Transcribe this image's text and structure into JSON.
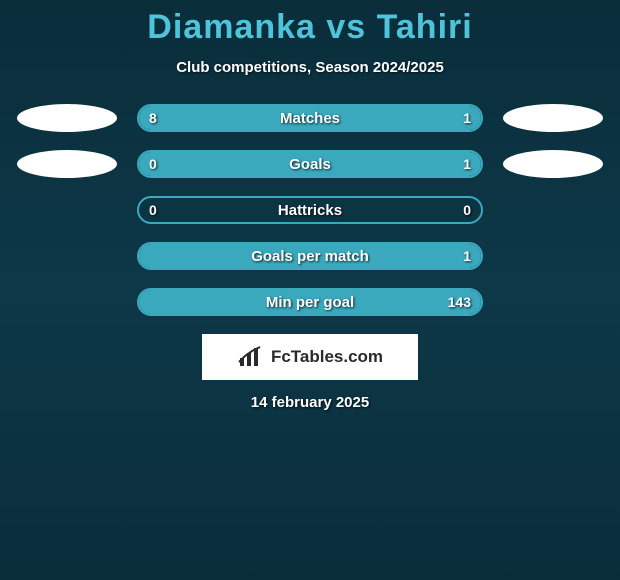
{
  "title": {
    "player1": "Diamanka",
    "vs": "vs",
    "player2": "Tahiri"
  },
  "subtitle": "Club competitions, Season 2024/2025",
  "accent": "#3aa8bd",
  "title_color": "#4fc3d9",
  "rows": [
    {
      "label": "Matches",
      "left": "8",
      "right": "1",
      "left_pct": 78,
      "right_pct": 22,
      "show_avatars": true
    },
    {
      "label": "Goals",
      "left": "0",
      "right": "1",
      "left_pct": 18,
      "right_pct": 82,
      "show_avatars": true
    },
    {
      "label": "Hattricks",
      "left": "0",
      "right": "0",
      "left_pct": 0,
      "right_pct": 0,
      "show_avatars": false
    },
    {
      "label": "Goals per match",
      "left": "",
      "right": "1",
      "left_pct": 0,
      "right_pct": 100,
      "show_avatars": false
    },
    {
      "label": "Min per goal",
      "left": "",
      "right": "143",
      "left_pct": 0,
      "right_pct": 100,
      "show_avatars": false
    }
  ],
  "logo_text": "FcTables.com",
  "date": "14 february 2025"
}
